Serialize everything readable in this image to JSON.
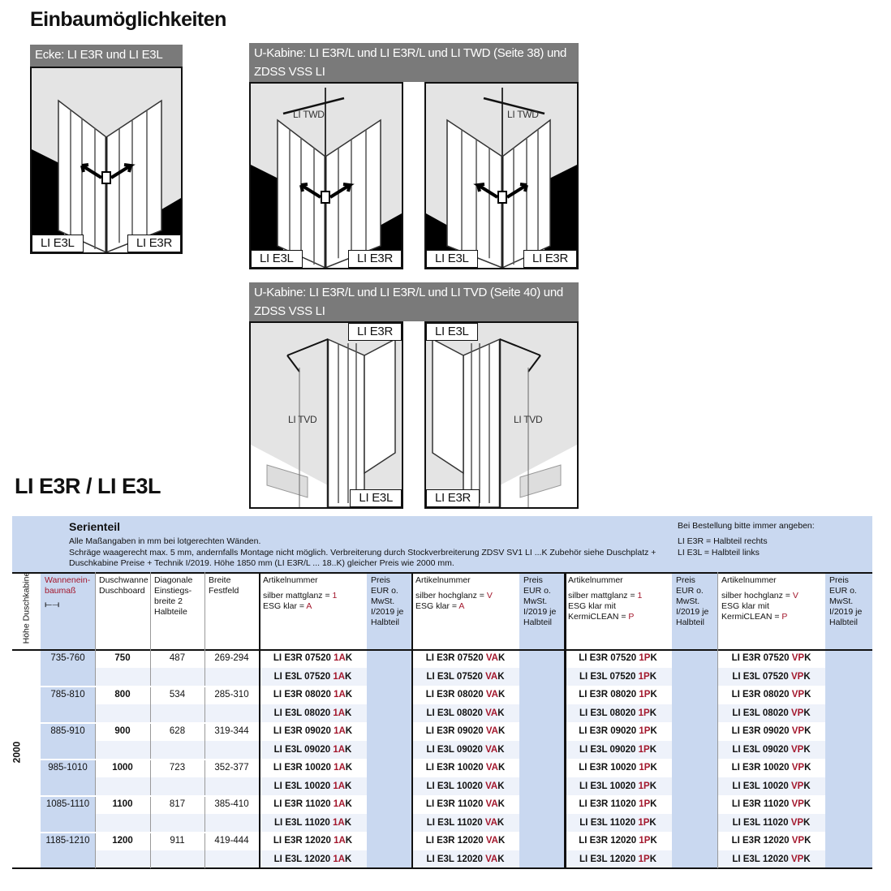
{
  "title": "Einbaumöglichkeiten",
  "panels": [
    {
      "header": "Ecke: LI E3R und LI E3L",
      "images": [
        {
          "left_label": "LI E3L",
          "right_label": "LI E3R",
          "inner_label": ""
        }
      ]
    },
    {
      "header": "U-Kabine: LI E3R/L und LI E3R/L und LI TWD (Seite 38) und ZDSS VSS LI",
      "images": [
        {
          "left_label": "LI E3L",
          "right_label": "LI E3R",
          "inner_label": "LI TWD"
        },
        {
          "left_label": "LI E3L",
          "right_label": "LI E3R",
          "inner_label": "LI TWD"
        }
      ]
    },
    {
      "header": "U-Kabine: LI E3R/L und LI E3R/L und LI TVD (Seite 40) und ZDSS VSS LI",
      "images": [
        {
          "top_label": "LI E3R",
          "bottom_label": "LI E3L",
          "inner_label": "LI TVD"
        },
        {
          "top_label": "LI E3L",
          "bottom_label": "LI E3R",
          "inner_label": "LI TVD"
        }
      ]
    }
  ],
  "product_title": "LI E3R / LI E3L",
  "table": {
    "band": {
      "title": "Serienteil",
      "lines": [
        "Alle Maßangaben in mm bei lotgerechten Wänden.",
        "Schräge waagerecht max. 5 mm, andernfalls Montage nicht möglich. Verbreiterung durch Stockverbreiterung ZDSV SV1 LI ...K Zubehör siehe Duschplatz +",
        "Duschkabine Preise + Technik I/2019. Höhe 1850 mm (LI E3R/L ... 18..K) gleicher Preis wie 2000 mm."
      ],
      "order_note": "Bei Bestellung bitte immer angeben:",
      "order_lines": [
        "LI E3R = Halbteil rechts",
        "LI E3L = Halbteil links"
      ]
    },
    "headers": {
      "hoehe": "Höhe Duschkabine",
      "wanne": "Wannenein-baumaß",
      "wanne_icon": "width-dimension-icon",
      "dusch": "Duschwanne Duschboard",
      "diag": "Diagonale Einstiegs-breite 2 Halbteile",
      "breite": "Breite Festfeld",
      "articles": [
        {
          "title": "Artikelnummer",
          "l1": "silber mattglanz = ",
          "c1": "1",
          "l2": "ESG klar = ",
          "c2": "A",
          "l3": ""
        },
        {
          "title": "Artikelnummer",
          "l1": "silber hochglanz = ",
          "c1": "V",
          "l2": "ESG klar = ",
          "c2": "A",
          "l3": ""
        },
        {
          "title": "Artikelnummer",
          "l1": "silber mattglanz = ",
          "c1": "1",
          "l2": "ESG klar mit",
          "c2": "",
          "l3": "KermiCLEAN = ",
          "c3": "P"
        },
        {
          "title": "Artikelnummer",
          "l1": "silber hochglanz = ",
          "c1": "V",
          "l2": "ESG klar mit",
          "c2": "",
          "l3": "KermiCLEAN = ",
          "c3": "P"
        }
      ],
      "price": "Preis EUR o. MwSt. I/2019 je Halbteil"
    },
    "height_value": "2000",
    "groups": [
      {
        "wanne": "735-760",
        "dusch": "750",
        "diag": "487",
        "breite": "269-294",
        "rows": [
          [
            "LI E3R 07520 1AK",
            "LI E3R 07520 VAK",
            "LI E3R 07520 1PK",
            "LI E3R 07520 VPK"
          ],
          [
            "LI E3L 07520 1AK",
            "LI E3L 07520 VAK",
            "LI E3L 07520 1PK",
            "LI E3L 07520 VPK"
          ]
        ]
      },
      {
        "wanne": "785-810",
        "dusch": "800",
        "diag": "534",
        "breite": "285-310",
        "rows": [
          [
            "LI E3R 08020 1AK",
            "LI E3R 08020 VAK",
            "LI E3R 08020 1PK",
            "LI E3R 08020 VPK"
          ],
          [
            "LI E3L 08020 1AK",
            "LI E3L 08020 VAK",
            "LI E3L 08020 1PK",
            "LI E3L 08020 VPK"
          ]
        ]
      },
      {
        "wanne": "885-910",
        "dusch": "900",
        "diag": "628",
        "breite": "319-344",
        "rows": [
          [
            "LI E3R 09020 1AK",
            "LI E3R 09020 VAK",
            "LI E3R 09020 1PK",
            "LI E3R 09020 VPK"
          ],
          [
            "LI E3L 09020 1AK",
            "LI E3L 09020 VAK",
            "LI E3L 09020 1PK",
            "LI E3L 09020 VPK"
          ]
        ]
      },
      {
        "wanne": "985-1010",
        "dusch": "1000",
        "diag": "723",
        "breite": "352-377",
        "rows": [
          [
            "LI E3R 10020 1AK",
            "LI E3R 10020 VAK",
            "LI E3R 10020 1PK",
            "LI E3R 10020 VPK"
          ],
          [
            "LI E3L 10020 1AK",
            "LI E3L 10020 VAK",
            "LI E3L 10020 1PK",
            "LI E3L 10020 VPK"
          ]
        ]
      },
      {
        "wanne": "1085-1110",
        "dusch": "1100",
        "diag": "817",
        "breite": "385-410",
        "rows": [
          [
            "LI E3R 11020 1AK",
            "LI E3R 11020 VAK",
            "LI E3R 11020 1PK",
            "LI E3R 11020 VPK"
          ],
          [
            "LI E3L 11020 1AK",
            "LI E3L 11020 VAK",
            "LI E3L 11020 1PK",
            "LI E3L 11020 VPK"
          ]
        ]
      },
      {
        "wanne": "1185-1210",
        "dusch": "1200",
        "diag": "911",
        "breite": "419-444",
        "rows": [
          [
            "LI E3R 12020 1AK",
            "LI E3R 12020 VAK",
            "LI E3R 12020 1PK",
            "LI E3R 12020 VPK"
          ],
          [
            "LI E3L 12020 1AK",
            "LI E3L 12020 VAK",
            "LI E3L 12020 1PK",
            "LI E3L 12020 VPK"
          ]
        ]
      }
    ]
  },
  "colors": {
    "band": "#c9d8f0",
    "code_red": "#a3172c",
    "header_gray": "#7a7a7a",
    "row_alt": "#eef2fa"
  }
}
